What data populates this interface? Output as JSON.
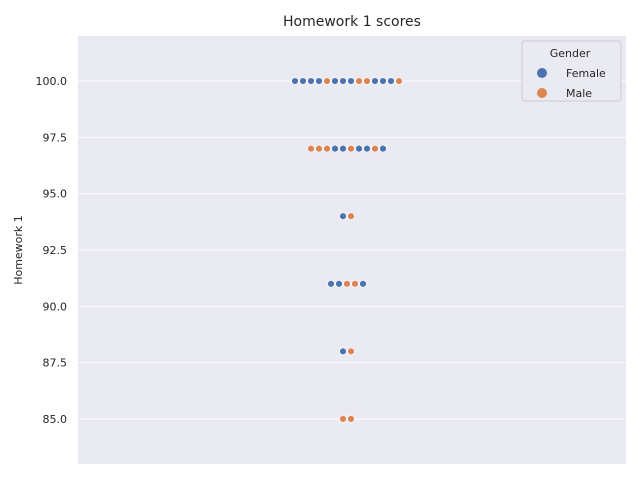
{
  "chart_data": {
    "type": "scatter",
    "style": "swarm",
    "title": "Homework 1 scores",
    "xlabel": "",
    "ylabel": "Homework 1",
    "ylim": [
      83.0,
      102.0
    ],
    "yticks": [
      85.0,
      87.5,
      90.0,
      92.5,
      95.0,
      97.5,
      100.0
    ],
    "ytick_labels": [
      "85.0",
      "87.5",
      "90.0",
      "92.5",
      "95.0",
      "97.5",
      "100.0"
    ],
    "grid": true,
    "legend": {
      "title": "Gender",
      "position": "top-right",
      "entries": [
        {
          "name": "Female",
          "color": "#4c72b0"
        },
        {
          "name": "Male",
          "color": "#dd8452"
        }
      ]
    },
    "series": [
      {
        "name": "Female",
        "color": "#4c72b0"
      },
      {
        "name": "Male",
        "color": "#dd8452"
      }
    ],
    "rows": [
      {
        "y": 100.0,
        "order": [
          "Female",
          "Female",
          "Female",
          "Female",
          "Male",
          "Female",
          "Female",
          "Female",
          "Male",
          "Male",
          "Female",
          "Female",
          "Female",
          "Male"
        ]
      },
      {
        "y": 97.0,
        "order": [
          "Male",
          "Male",
          "Male",
          "Female",
          "Female",
          "Male",
          "Female",
          "Female",
          "Male",
          "Female"
        ]
      },
      {
        "y": 94.0,
        "order": [
          "Female",
          "Male"
        ]
      },
      {
        "y": 91.0,
        "order": [
          "Female",
          "Female",
          "Male",
          "Male",
          "Female"
        ]
      },
      {
        "y": 88.0,
        "order": [
          "Female",
          "Male"
        ]
      },
      {
        "y": 85.0,
        "order": [
          "Male",
          "Male"
        ]
      }
    ]
  }
}
